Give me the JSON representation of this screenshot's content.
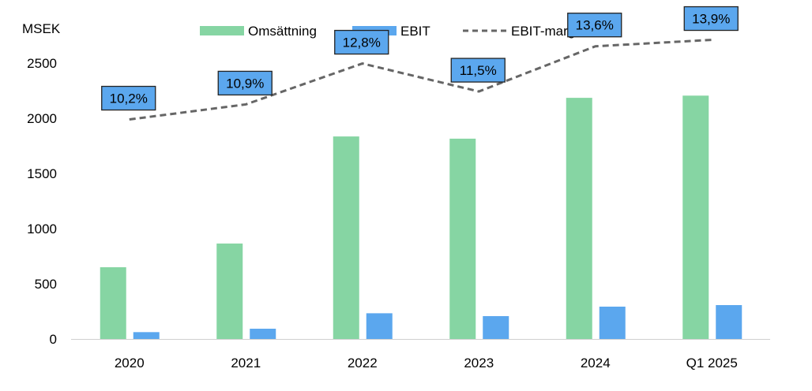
{
  "chart_data": {
    "type": "bar",
    "unit_label": "MSEK",
    "categories": [
      "2020",
      "2021",
      "2022",
      "2023",
      "2024",
      "Q1 2025"
    ],
    "series": [
      {
        "name": "Omsättning",
        "kind": "bar",
        "color": "#86d5a3",
        "values": [
          650,
          865,
          1835,
          1815,
          2185,
          2205
        ]
      },
      {
        "name": "EBIT",
        "kind": "bar",
        "color": "#5ba7ee",
        "values": [
          62,
          93,
          233,
          207,
          293,
          307
        ]
      },
      {
        "name": "EBIT-marginal",
        "kind": "line",
        "style": "dashed",
        "color": "#666666",
        "values": [
          10.2,
          10.9,
          12.8,
          11.5,
          13.6,
          13.9
        ],
        "labels": [
          "10,2%",
          "10,9%",
          "12,8%",
          "11,5%",
          "13,6%",
          "13,9%"
        ],
        "label_color": "#5ba7ee"
      }
    ],
    "y_ticks": [
      "0",
      "500",
      "1000",
      "1500",
      "2000",
      "2500"
    ],
    "ylim": [
      0,
      2500
    ],
    "title": "",
    "xlabel": "",
    "ylabel": "MSEK",
    "legend_position": "top",
    "grid": false
  }
}
